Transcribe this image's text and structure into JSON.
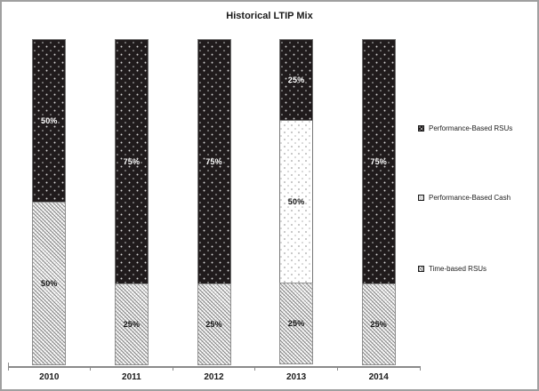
{
  "chart_data": {
    "type": "bar",
    "subtype": "stacked-column",
    "title": "Historical LTIP Mix",
    "categories": [
      "2010",
      "2011",
      "2012",
      "2013",
      "2014"
    ],
    "series": [
      {
        "name": "Time-based RSUs",
        "pattern": "diag-hatch",
        "values": [
          50,
          25,
          25,
          25,
          25
        ]
      },
      {
        "name": "Performance-Based Cash",
        "pattern": "white-dots",
        "values": [
          0,
          0,
          0,
          50,
          0
        ]
      },
      {
        "name": "Performance-Based RSUs",
        "pattern": "dark-dots",
        "values": [
          50,
          75,
          75,
          25,
          75
        ]
      }
    ],
    "value_suffix": "%",
    "ylim": [
      0,
      100
    ],
    "grid": false,
    "y_axis_visible": false,
    "legend_position": "right",
    "legend_order": [
      "Performance-Based RSUs",
      "Performance-Based Cash",
      "Time-based RSUs"
    ]
  },
  "colors": {
    "dark_fill": "#201b1c",
    "hatch_line": "#8f8f8f",
    "axis": "#8a8a8a",
    "frame_border": "#a0a0a0",
    "label_on_dark": "#ffffff",
    "label_on_light": "#141414"
  }
}
